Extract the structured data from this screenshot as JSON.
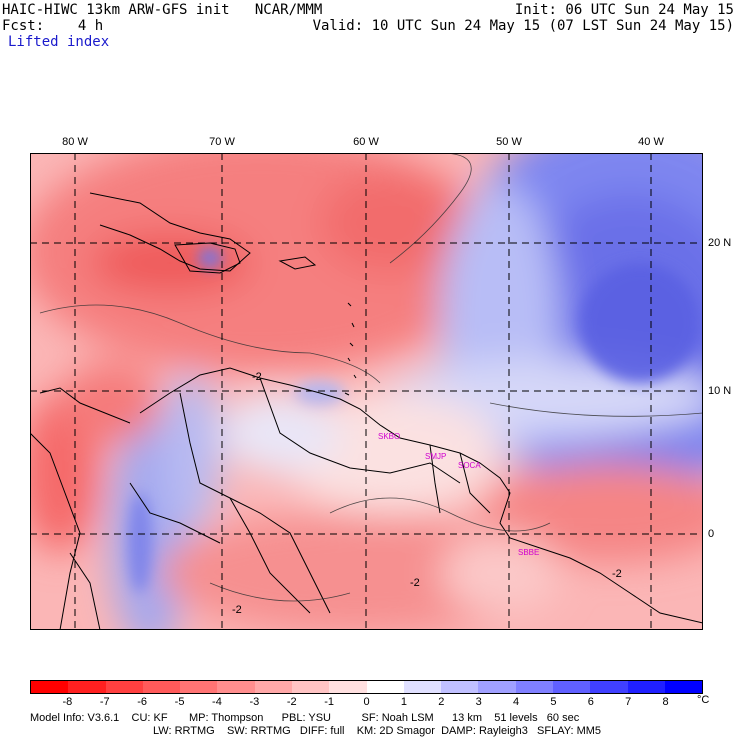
{
  "header": {
    "model_line": "HAIC-HIWC 13km ARW-GFS init   NCAR/MMM",
    "init_line": "Init: 06 UTC Sun 24 May 15",
    "fcst_label": "Fcst:    4 h",
    "valid_line": "Valid: 10 UTC Sun 24 May 15 (07 LST Sun 24 May 15)",
    "field_name": "Lifted index"
  },
  "map": {
    "lon_labels": [
      "80 W",
      "70 W",
      "60 W",
      "50 W",
      "40 W"
    ],
    "lat_labels": [
      "20 N",
      "10 N",
      "0"
    ],
    "contour_labels": [
      "-2",
      "-2",
      "-2",
      "-2"
    ],
    "stations": [
      "SKBO",
      "SMJP",
      "SOCA",
      "SBBE"
    ]
  },
  "colorbar": {
    "unit": "°C",
    "tick_labels": [
      "-8",
      "-7",
      "-6",
      "-5",
      "-4",
      "-3",
      "-2",
      "-1",
      "0",
      "1",
      "2",
      "3",
      "4",
      "5",
      "6",
      "7",
      "8"
    ],
    "colors": [
      "#ff0000",
      "#ff2020",
      "#ff4040",
      "#ff5a5a",
      "#ff7474",
      "#ff8e8e",
      "#ffa8a8",
      "#ffc4c4",
      "#ffe0e0",
      "#ffffff",
      "#e0e0ff",
      "#c0c0ff",
      "#a0a0ff",
      "#8080ff",
      "#6060ff",
      "#4040ff",
      "#2020ff",
      "#0000ff"
    ]
  },
  "footer": {
    "line1": "Model Info: V3.6.1    CU: KF       MP: Thompson      PBL: YSU          SF: Noah LSM      13 km    51 levels   60 sec",
    "line2": "LW: RRTMG    SW: RRTMG   DIFF: full    KM: 2D Smagor  DAMP: Rayleigh3   SFLAY: MM5"
  }
}
